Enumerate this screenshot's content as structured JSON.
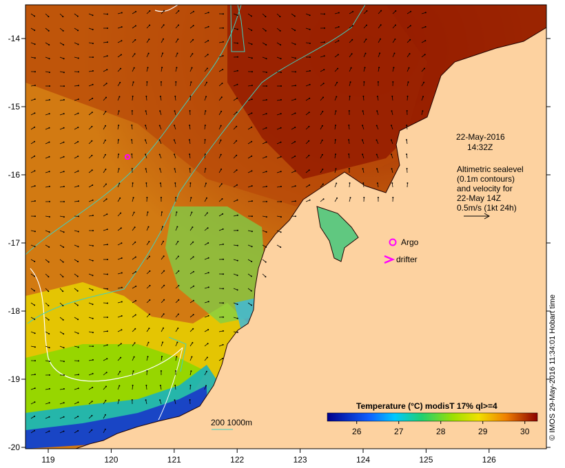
{
  "map": {
    "date": "22-May-2016",
    "time": "14:32Z",
    "altimetry_lines": [
      "Altimetric sealevel",
      "(0.1m contours)",
      "and velocity for",
      "22-May 14Z",
      "0.5m/s (1kt 24h)"
    ],
    "legend": {
      "argo": "Argo",
      "drifter": "drifter"
    },
    "bathymetry_label": "200  1000m",
    "colorbar": {
      "title": "Temperature (°C) modisT 17% ql>=4",
      "ticks": [
        "26",
        "27",
        "28",
        "29",
        "30"
      ],
      "min": 25.3,
      "max": 30.3
    },
    "lon_ticks": [
      "119",
      "120",
      "121",
      "122",
      "123",
      "124",
      "125",
      "126"
    ],
    "lat_ticks": [
      "-14",
      "-15",
      "-16",
      "-17",
      "-18",
      "-19",
      "-20"
    ],
    "credit": "© IMOS 29-May-2016 11:34:01 Hobart time",
    "colors": {
      "land": "#fdd2a0",
      "warm": "#8b1a00",
      "cool": "#1a3cc8",
      "contour": "#ffffff",
      "isobath": "#40d0c0",
      "markers": "#ff00ff"
    }
  }
}
